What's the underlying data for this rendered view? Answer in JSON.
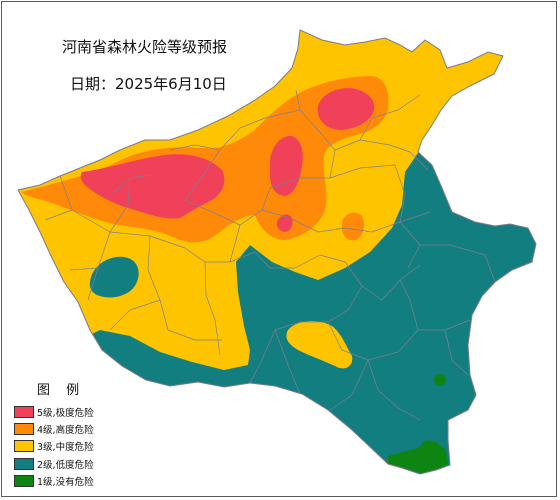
{
  "map": {
    "title": "河南省森林火险等级预报",
    "date": "日期：2025年6月10日"
  },
  "legend": {
    "title": "图 例",
    "items": [
      {
        "label": "5级,极度危险",
        "color": "#f0405a"
      },
      {
        "label": "4级,高度危险",
        "color": "#ff8a0a"
      },
      {
        "label": "3级,中度危险",
        "color": "#ffc400"
      },
      {
        "label": "2级,低度危险",
        "color": "#137e80"
      },
      {
        "label": "1级,没有危险",
        "color": "#0e8512"
      }
    ]
  }
}
